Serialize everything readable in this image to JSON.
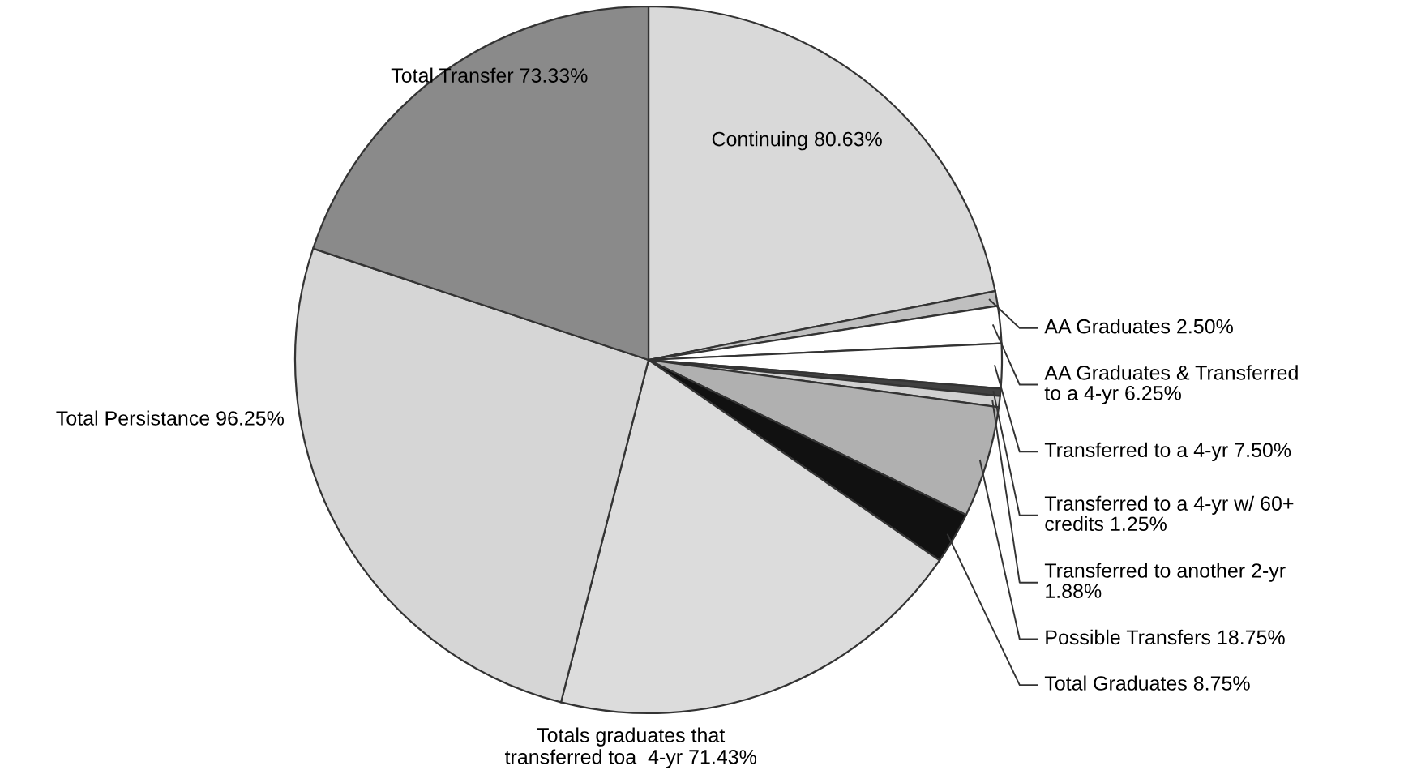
{
  "chart_data": {
    "type": "pie",
    "categories": [
      "Continuing 80.63%",
      "AA Graduates 2.50%",
      "AA Graduates & Transferred\nto a 4-yr 6.25%",
      "Transferred to a 4-yr 7.50%",
      "Transferred to a 4-yr w/ 60+\ncredits 1.25%",
      "Transferred to another 2-yr\n1.88%",
      "Possible Transfers 18.75%",
      "Total Graduates 8.75%",
      "Totals graduates that\ntransferred toa  4-yr 71.43%",
      "Total Persistance 96.25%",
      "Total Transfer 73.33%"
    ],
    "values": [
      80.63,
      2.5,
      6.25,
      7.5,
      1.25,
      1.88,
      18.75,
      8.75,
      71.43,
      96.25,
      73.33
    ],
    "colors": [
      "#d9d9d9",
      "#bfbfbf",
      "#ffffff",
      "#ffffff",
      "#404040",
      "#d0d0d0",
      "#b0b0b0",
      "#111111",
      "#dcdcdc",
      "#d6d6d6",
      "#8a8a8a"
    ]
  }
}
